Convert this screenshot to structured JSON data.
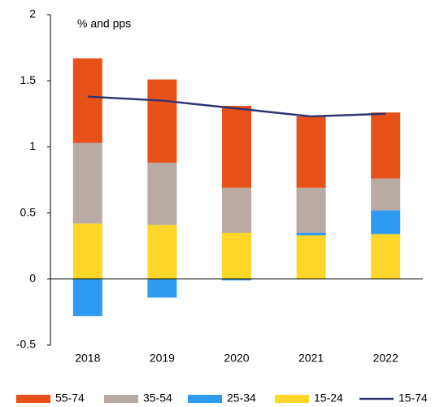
{
  "chart_data": {
    "type": "bar",
    "stacked": true,
    "annotation": "% and pps",
    "categories": [
      "2018",
      "2019",
      "2020",
      "2021",
      "2022"
    ],
    "series": [
      {
        "name": "55-74",
        "color": "#e8501a",
        "values": [
          0.64,
          0.63,
          0.62,
          0.54,
          0.5
        ]
      },
      {
        "name": "35-54",
        "color": "#b8aba3",
        "values": [
          0.61,
          0.47,
          0.34,
          0.34,
          0.24
        ]
      },
      {
        "name": "25-34",
        "color": "#2e9bf0",
        "values": [
          -0.28,
          -0.14,
          -0.01,
          0.02,
          0.18
        ]
      },
      {
        "name": "15-24",
        "color": "#fdd629",
        "values": [
          0.42,
          0.41,
          0.35,
          0.33,
          0.34
        ]
      },
      {
        "name": "15-74",
        "color": "#2e3570",
        "type": "line",
        "values": [
          1.38,
          1.35,
          1.29,
          1.23,
          1.25
        ]
      }
    ],
    "stack_order": [
      3,
      2,
      1,
      0
    ],
    "ylim": [
      -0.5,
      2
    ],
    "yticks": [
      -0.5,
      0,
      0.5,
      1,
      1.5,
      2
    ],
    "grid": false,
    "legend": "bottom"
  }
}
